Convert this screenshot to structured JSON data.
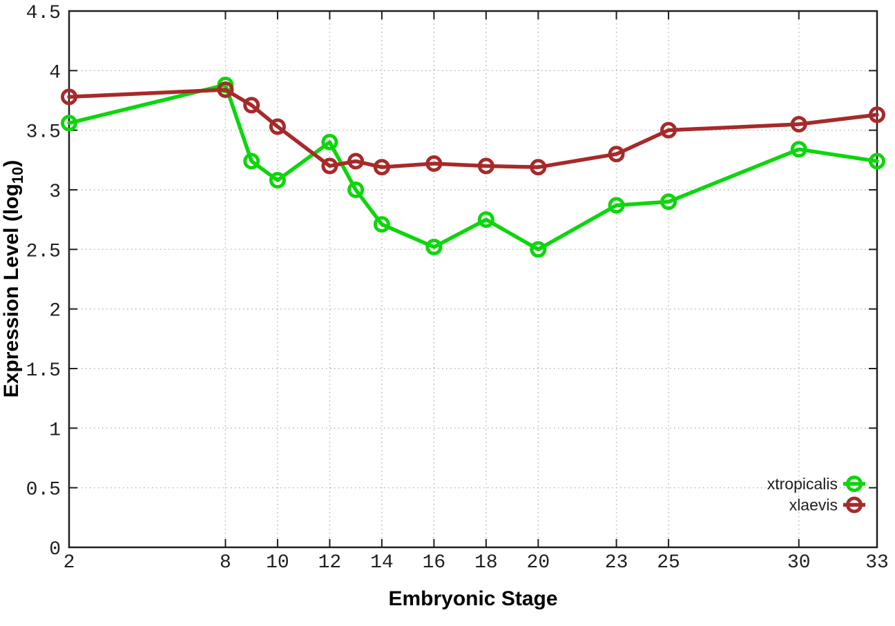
{
  "chart_data": {
    "type": "line",
    "title": "",
    "xlabel": "Embryonic Stage",
    "ylabel": "Expression Level (log10)",
    "ylabel_parts": {
      "pre": "Expression Level (log",
      "sub": "10",
      "post": ")"
    },
    "xlim": [
      2,
      33
    ],
    "ylim": [
      0,
      4.5
    ],
    "grid": true,
    "legend_position": "inside-bottom-right",
    "x": [
      2,
      8,
      9,
      10,
      12,
      13,
      14,
      16,
      18,
      20,
      23,
      25,
      30,
      33
    ],
    "xticks": [
      2,
      8,
      10,
      12,
      14,
      16,
      18,
      20,
      23,
      25,
      30,
      33
    ],
    "xtick_labels": [
      "2",
      "8",
      "10",
      "12",
      "14",
      "16",
      "18",
      "20",
      "23",
      "25",
      "30",
      "33"
    ],
    "yticks": [
      0,
      0.5,
      1,
      1.5,
      2,
      2.5,
      3,
      3.5,
      4,
      4.5
    ],
    "ytick_labels": [
      "0",
      "0.5",
      "1",
      "1.5",
      "2",
      "2.5",
      "3",
      "3.5",
      "4",
      "4.5"
    ],
    "series": [
      {
        "name": "xtropicalis",
        "color": "#0cd60c",
        "marker": "open-circle",
        "values": [
          3.56,
          3.88,
          3.24,
          3.08,
          3.4,
          3.0,
          2.71,
          2.52,
          2.75,
          2.5,
          2.87,
          2.9,
          3.34,
          3.24
        ]
      },
      {
        "name": "xlaevis",
        "color": "#a62a2a",
        "marker": "open-circle",
        "values": [
          3.78,
          3.84,
          3.71,
          3.53,
          3.2,
          3.24,
          3.19,
          3.22,
          3.2,
          3.19,
          3.3,
          3.5,
          3.55,
          3.63
        ]
      }
    ]
  },
  "colors": {
    "background": "#ffffff",
    "border": "#1f1f1f",
    "grid": "#b3b3b3",
    "tick_text": "#1f1f1f",
    "title_text": "#000000"
  }
}
